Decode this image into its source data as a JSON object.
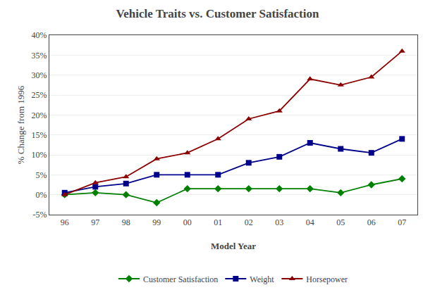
{
  "chart_data": {
    "type": "line",
    "title": "Vehicle Traits vs. Customer Satisfaction",
    "xlabel": "Model Year",
    "ylabel": "% Change from 1996",
    "x": [
      96,
      97,
      98,
      99,
      100,
      101,
      102,
      103,
      104,
      105,
      106,
      107
    ],
    "series": [
      {
        "name": "Customer Satisfaction",
        "color": "#008000",
        "marker": "diamond",
        "values": [
          0,
          0.5,
          0,
          -2,
          1.5,
          1.5,
          1.5,
          1.5,
          1.5,
          0.5,
          2.5,
          4
        ]
      },
      {
        "name": "Weight",
        "color": "#00008B",
        "marker": "square",
        "values": [
          0.5,
          2,
          2.8,
          5,
          5,
          5,
          8,
          9.5,
          13,
          11.5,
          10.5,
          14
        ]
      },
      {
        "name": "Horsepower",
        "color": "#8B0000",
        "marker": "triangle-up",
        "values": [
          0,
          3,
          4.5,
          9,
          10.5,
          14,
          19,
          21,
          29,
          27.5,
          29.5,
          36
        ]
      }
    ],
    "xlim": [
      95.5,
      107.5
    ],
    "xticks": [
      96,
      97,
      98,
      99,
      {
        "value": 100,
        "label": "00"
      },
      {
        "value": 101,
        "label": "01"
      },
      {
        "value": 102,
        "label": "02"
      },
      {
        "value": 103,
        "label": "03"
      },
      {
        "value": 104,
        "label": "04"
      },
      {
        "value": 105,
        "label": "05"
      },
      {
        "value": 106,
        "label": "06"
      },
      {
        "value": 107,
        "label": "07"
      }
    ],
    "ylim": [
      -5,
      40
    ],
    "yticks": [
      {
        "value": -5,
        "label": "-5%"
      },
      {
        "value": 0,
        "label": "0%"
      },
      {
        "value": 5,
        "label": "5%"
      },
      {
        "value": 10,
        "label": "10%"
      },
      {
        "value": 15,
        "label": "15%"
      },
      {
        "value": 20,
        "label": "20%"
      },
      {
        "value": 25,
        "label": "25%"
      },
      {
        "value": 30,
        "label": "30%"
      },
      {
        "value": 35,
        "label": "35%"
      },
      {
        "value": 40,
        "label": "40%"
      }
    ],
    "grid": "y",
    "legend": "bottom"
  }
}
